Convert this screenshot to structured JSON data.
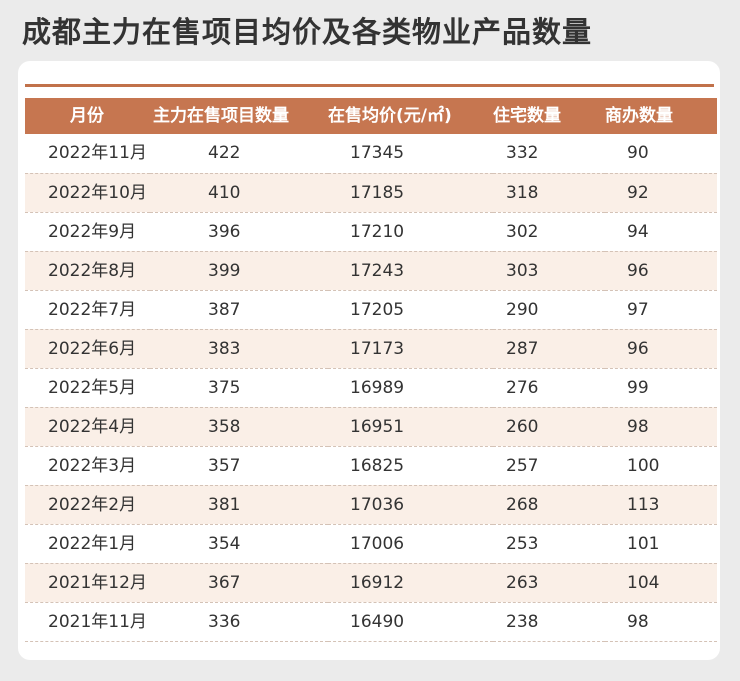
{
  "page": {
    "title": "成都主力在售项目均价及各类物业产品数量"
  },
  "colors": {
    "header_bg": "#c67650",
    "accent_line": "#c1714a",
    "stripe_bg": "#faefe7",
    "page_bg": "#ebebeb"
  },
  "chart_data": {
    "type": "table",
    "title": "成都主力在售项目均价及各类物业产品数量",
    "columns": [
      "月份",
      "主力在售项目数量",
      "在售均价(元/㎡)",
      "住宅数量",
      "商办数量"
    ],
    "rows": [
      [
        "2022年11月",
        "422",
        "17345",
        "332",
        "90"
      ],
      [
        "2022年10月",
        "410",
        "17185",
        "318",
        "92"
      ],
      [
        "2022年9月",
        "396",
        "17210",
        "302",
        "94"
      ],
      [
        "2022年8月",
        "399",
        "17243",
        "303",
        "96"
      ],
      [
        "2022年7月",
        "387",
        "17205",
        "290",
        "97"
      ],
      [
        "2022年6月",
        "383",
        "17173",
        "287",
        "96"
      ],
      [
        "2022年5月",
        "375",
        "16989",
        "276",
        "99"
      ],
      [
        "2022年4月",
        "358",
        "16951",
        "260",
        "98"
      ],
      [
        "2022年3月",
        "357",
        "16825",
        "257",
        "100"
      ],
      [
        "2022年2月",
        "381",
        "17036",
        "268",
        "113"
      ],
      [
        "2022年1月",
        "354",
        "17006",
        "253",
        "101"
      ],
      [
        "2021年12月",
        "367",
        "16912",
        "263",
        "104"
      ],
      [
        "2021年11月",
        "336",
        "16490",
        "238",
        "98"
      ]
    ]
  }
}
